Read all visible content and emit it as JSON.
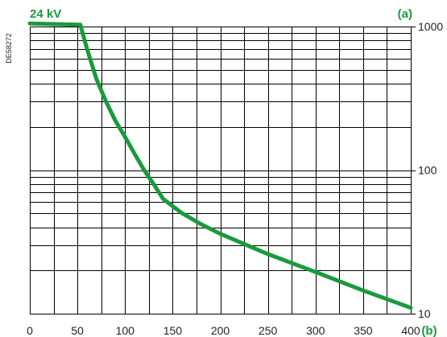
{
  "colors": {
    "curve": "#1a9a3c",
    "grid": "#000000",
    "text": "#222222"
  },
  "chart_data": {
    "type": "line",
    "title": "24 kV",
    "y_axis_letter": "(a)",
    "x_axis_letter": "(b)",
    "doc_code": "DE58272",
    "xlim": [
      0,
      400
    ],
    "ylim": [
      10,
      1000
    ],
    "y_scale": "log",
    "x_ticks": [
      0,
      50,
      100,
      150,
      200,
      250,
      300,
      350,
      400
    ],
    "x_tick_labels": [
      "0",
      "50",
      "100",
      "150",
      "200",
      "250",
      "300",
      "350",
      "400"
    ],
    "y_ticks": [
      10,
      100,
      1000
    ],
    "y_tick_labels": [
      "10",
      "100",
      "1000"
    ],
    "grid": true,
    "x_grid_step": 25,
    "y_axis_side": "right",
    "series": [
      {
        "points": [
          [
            0,
            1050
          ],
          [
            53,
            1030
          ],
          [
            60,
            700
          ],
          [
            70,
            430
          ],
          [
            80,
            300
          ],
          [
            90,
            220
          ],
          [
            100,
            170
          ],
          [
            110,
            130
          ],
          [
            120,
            100
          ],
          [
            130,
            80
          ],
          [
            140,
            63
          ],
          [
            160,
            50
          ],
          [
            180,
            42
          ],
          [
            200,
            36
          ],
          [
            250,
            26
          ],
          [
            300,
            19.5
          ],
          [
            350,
            14.5
          ],
          [
            400,
            11
          ]
        ]
      }
    ]
  }
}
